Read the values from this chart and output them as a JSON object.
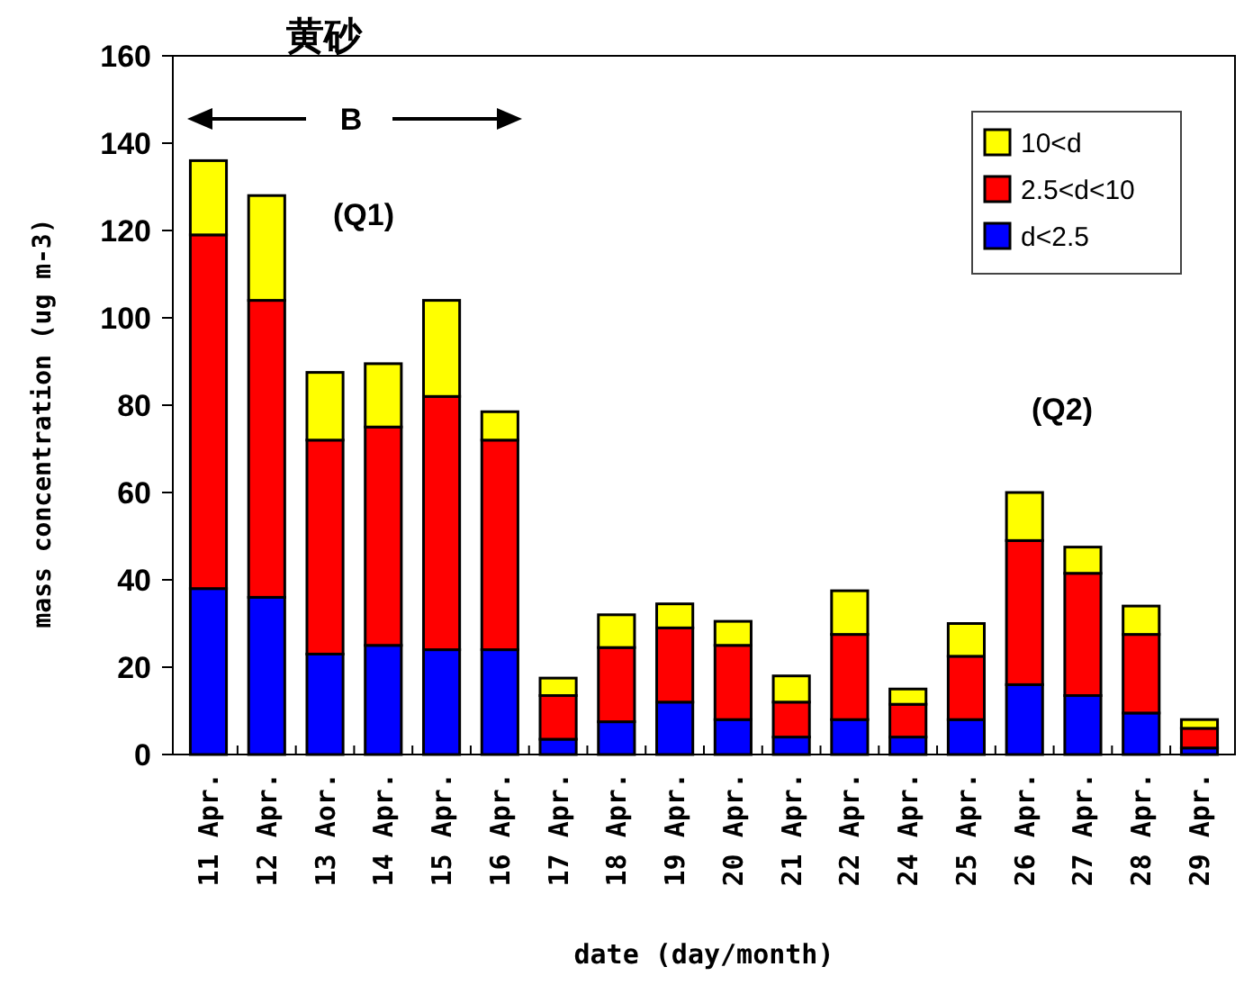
{
  "chart_data": {
    "type": "bar",
    "stacked": true,
    "title": "黄砂",
    "xlabel": "date (day/month)",
    "ylabel": "mass concentration (ug m-3)",
    "categories": [
      "11 Apr.",
      "12 Apr.",
      "13 Aor.",
      "14 Apr.",
      "15 Apr.",
      "16 Apr.",
      "17 Apr.",
      "18 Apr.",
      "19 Apr.",
      "20 Apr.",
      "21 Apr.",
      "22 Apr.",
      "24 Apr.",
      "25 Apr.",
      "26 Apr.",
      "27 Apr.",
      "28 Apr.",
      "29 Apr."
    ],
    "series": [
      {
        "name": "d<2.5",
        "color": "#0000ff",
        "values": [
          38,
          36,
          23,
          25,
          24,
          24,
          3.5,
          7.5,
          12,
          8,
          4,
          8,
          4,
          8,
          16,
          13.5,
          9.5,
          1.5
        ]
      },
      {
        "name": "2.5<d<10",
        "color": "#ff0000",
        "values": [
          81,
          68,
          49,
          50,
          58,
          48,
          10,
          17,
          17,
          17,
          8,
          19.5,
          7.5,
          14.5,
          33,
          28,
          18,
          4.5
        ]
      },
      {
        "name": "10<d",
        "color": "#ffff00",
        "values": [
          17,
          24,
          15.5,
          14.5,
          22,
          6.5,
          4,
          7.5,
          5.5,
          5.5,
          6,
          10,
          3.5,
          7.5,
          11,
          6,
          6.5,
          2
        ]
      }
    ],
    "ylim": [
      0,
      160
    ],
    "yticks": [
      0,
      20,
      40,
      60,
      80,
      100,
      120,
      140,
      160
    ],
    "grid": false,
    "legend": "top right",
    "annotations": [
      "B",
      "(Q1)",
      "(Q2)"
    ]
  }
}
